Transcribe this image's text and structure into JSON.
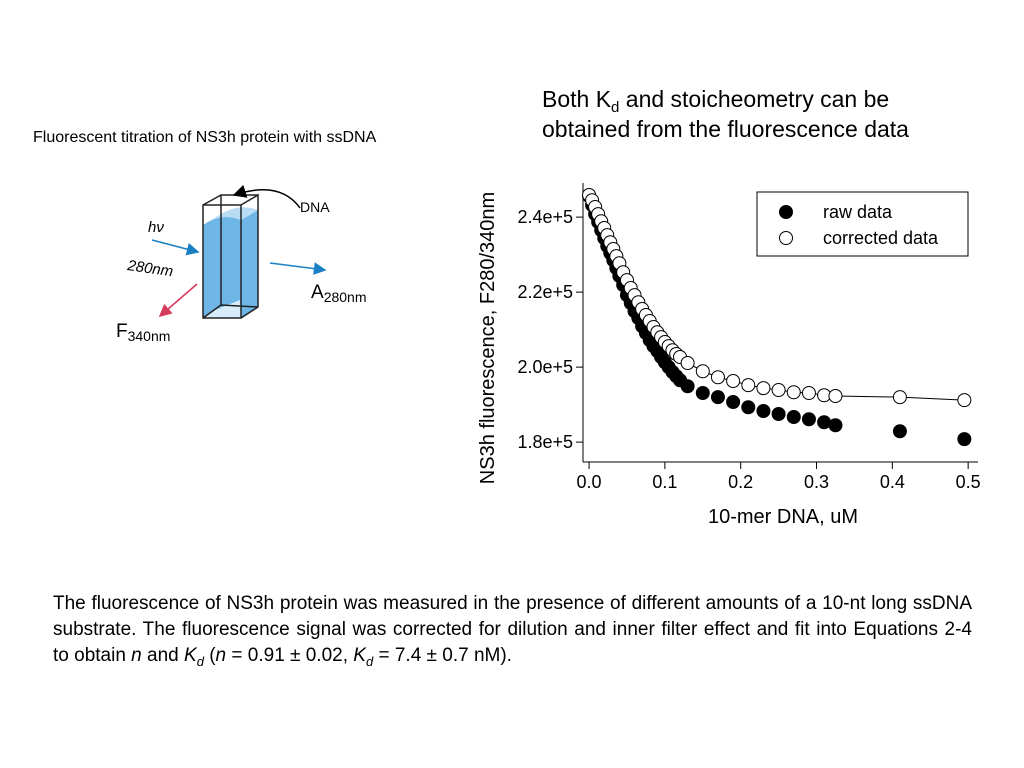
{
  "heading": [
    "Both K",
    "d",
    " and stoicheometry can be",
    "obtained from the fluorescence data"
  ],
  "diagram": {
    "title": "Fluorescent titration of NS3h protein with ssDNA",
    "dna": "DNA",
    "light": "hν",
    "excitation": "280nm",
    "absorbance": [
      "A",
      "280nm"
    ],
    "fluorescence": [
      "F",
      "340nm"
    ]
  },
  "chart_data": {
    "type": "scatter",
    "xlabel": "10-mer DNA, uM",
    "ylabel": "NS3h fluorescence, F280/340nm",
    "x": [
      0,
      0.004,
      0.008,
      0.012,
      0.016,
      0.02,
      0.024,
      0.028,
      0.032,
      0.036,
      0.04,
      0.045,
      0.05,
      0.055,
      0.06,
      0.065,
      0.07,
      0.075,
      0.08,
      0.085,
      0.09,
      0.095,
      0.1,
      0.105,
      0.11,
      0.115,
      0.12,
      0.13,
      0.15,
      0.17,
      0.19,
      0.21,
      0.23,
      0.25,
      0.27,
      0.29,
      0.31,
      0.325,
      0.41,
      0.495
    ],
    "series": [
      {
        "name": "raw data",
        "color": "#000000",
        "marker": "filled",
        "values": [
          245600,
          243200,
          240800,
          238700,
          236500,
          234400,
          232300,
          230400,
          228500,
          226400,
          224300,
          221900,
          219200,
          217100,
          214900,
          213100,
          210900,
          209100,
          207200,
          205600,
          204300,
          202700,
          201300,
          200000,
          198700,
          197600,
          196500,
          194900,
          193100,
          192000,
          190700,
          189300,
          188300,
          187500,
          186700,
          186100,
          185300,
          184500,
          182900,
          180800
        ]
      },
      {
        "name": "corrected data",
        "color": "#000000",
        "marker": "open",
        "fit_line": true,
        "values": [
          245900,
          244500,
          242700,
          240800,
          238900,
          237100,
          235200,
          233300,
          231500,
          229600,
          227700,
          225300,
          223200,
          221100,
          219200,
          217300,
          215500,
          213900,
          212300,
          210700,
          209300,
          208000,
          206700,
          205600,
          204500,
          203500,
          202700,
          201100,
          198900,
          197300,
          196300,
          195200,
          194400,
          193900,
          193300,
          193100,
          192500,
          192300,
          192000,
          191200
        ]
      }
    ],
    "xlim": [
      -0.008,
      0.513
    ],
    "ylim": [
      174700,
      249100
    ],
    "xticks": [
      {
        "value": 0,
        "label": "0.0"
      },
      0.1,
      0.2,
      0.3,
      0.4,
      0.5
    ],
    "yticks": [
      {
        "value": 180000,
        "label": "1.8e+5"
      },
      {
        "value": 200000,
        "label": "2.0e+5"
      },
      {
        "value": 220000,
        "label": "2.2e+5"
      },
      {
        "value": 240000,
        "label": "2.4e+5"
      }
    ],
    "legend": "upper right"
  },
  "caption": [
    "The fluorescence of NS3h protein was measured in the presence of different amounts of a 10-nt long ssDNA substrate.  The fluorescence signal was corrected for dilution and inner filter effect and fit into Equations 2-4 to obtain ",
    "n",
    " and ",
    "K",
    "d",
    " (",
    "n",
    " = 0.91 ± 0.02, ",
    "K",
    "d",
    " = 7.4 ± 0.7 nM)."
  ]
}
